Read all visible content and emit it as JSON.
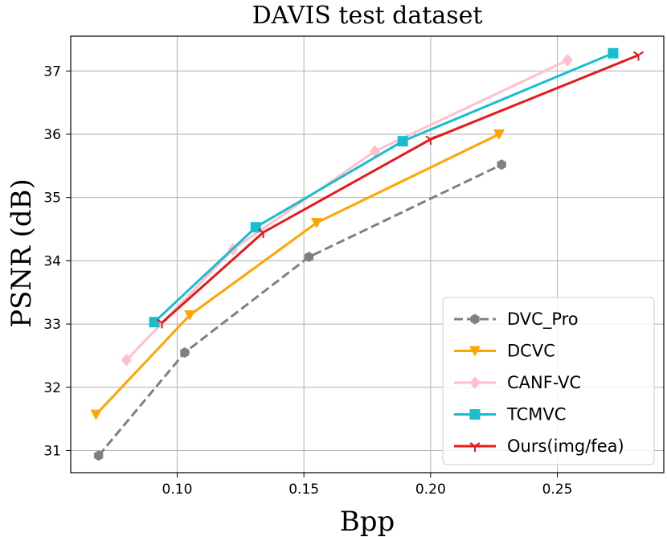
{
  "chart_data": {
    "type": "line",
    "title": "DAVIS test dataset",
    "xlabel": "Bpp",
    "ylabel": "PSNR (dB)",
    "xlim": [
      0.058,
      0.292
    ],
    "ylim": [
      30.65,
      37.55
    ],
    "xticks": [
      0.1,
      0.15,
      0.2,
      0.25
    ],
    "xtick_labels": [
      "0.10",
      "0.15",
      "0.20",
      "0.25"
    ],
    "yticks": [
      31,
      32,
      33,
      34,
      35,
      36,
      37
    ],
    "ytick_labels": [
      "31",
      "32",
      "33",
      "34",
      "35",
      "36",
      "37"
    ],
    "grid": true,
    "legend_position": "bottom-right",
    "series": [
      {
        "name": "DVC_Pro",
        "color": "#808080",
        "linestyle": "dashed",
        "marker": "hexagon",
        "x": [
          0.069,
          0.103,
          0.152,
          0.228
        ],
        "y": [
          30.92,
          32.55,
          34.06,
          35.52
        ]
      },
      {
        "name": "DCVC",
        "color": "#ffa500",
        "linestyle": "solid",
        "marker": "triangle-down",
        "x": [
          0.068,
          0.105,
          0.155,
          0.227
        ],
        "y": [
          31.57,
          33.14,
          34.6,
          36.0
        ]
      },
      {
        "name": "CANF-VC",
        "color": "#ffc0cb",
        "linestyle": "solid",
        "marker": "diamond",
        "x": [
          0.08,
          0.122,
          0.178,
          0.254
        ],
        "y": [
          32.43,
          34.18,
          35.73,
          37.17
        ]
      },
      {
        "name": "TCMVC",
        "color": "#17becf",
        "linestyle": "solid",
        "marker": "square",
        "x": [
          0.091,
          0.131,
          0.189,
          0.272
        ],
        "y": [
          33.03,
          34.53,
          35.89,
          37.28
        ]
      },
      {
        "name": "Ours(img/fea)",
        "color": "#e41a1c",
        "linestyle": "solid",
        "marker": "tri-down",
        "x": [
          0.094,
          0.134,
          0.2,
          0.282
        ],
        "y": [
          33.02,
          34.45,
          35.92,
          37.25
        ]
      }
    ]
  }
}
